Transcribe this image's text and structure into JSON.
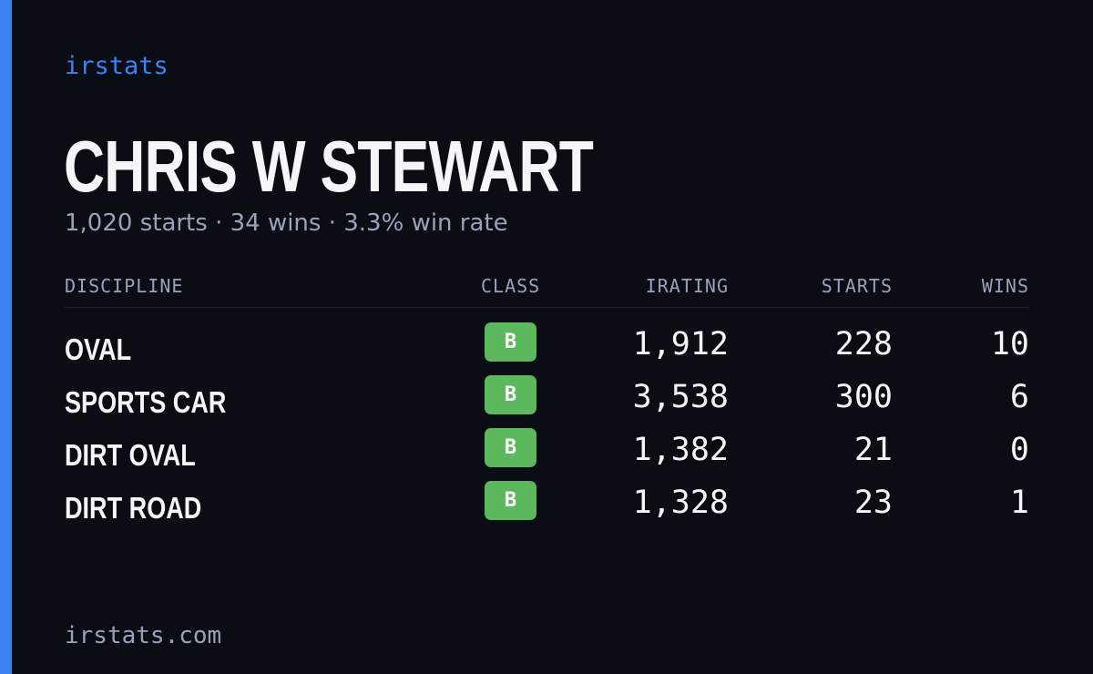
{
  "colors": {
    "background": "#0a0d14",
    "accent": "#3b82f6",
    "class_b": "#5cb85c"
  },
  "brand": "irstats",
  "driver_name": "CHRIS W STEWART",
  "summary": "1,020 starts · 34 wins · 3.3% win rate",
  "table": {
    "headers": {
      "discipline": "DISCIPLINE",
      "class": "CLASS",
      "irating": "IRATING",
      "starts": "STARTS",
      "wins": "WINS"
    },
    "rows": [
      {
        "discipline": "OVAL",
        "class": "B",
        "irating": "1,912",
        "starts": "228",
        "wins": "10"
      },
      {
        "discipline": "SPORTS CAR",
        "class": "B",
        "irating": "3,538",
        "starts": "300",
        "wins": "6"
      },
      {
        "discipline": "DIRT OVAL",
        "class": "B",
        "irating": "1,382",
        "starts": "21",
        "wins": "0"
      },
      {
        "discipline": "DIRT ROAD",
        "class": "B",
        "irating": "1,328",
        "starts": "23",
        "wins": "1"
      }
    ]
  },
  "footer": "irstats.com"
}
